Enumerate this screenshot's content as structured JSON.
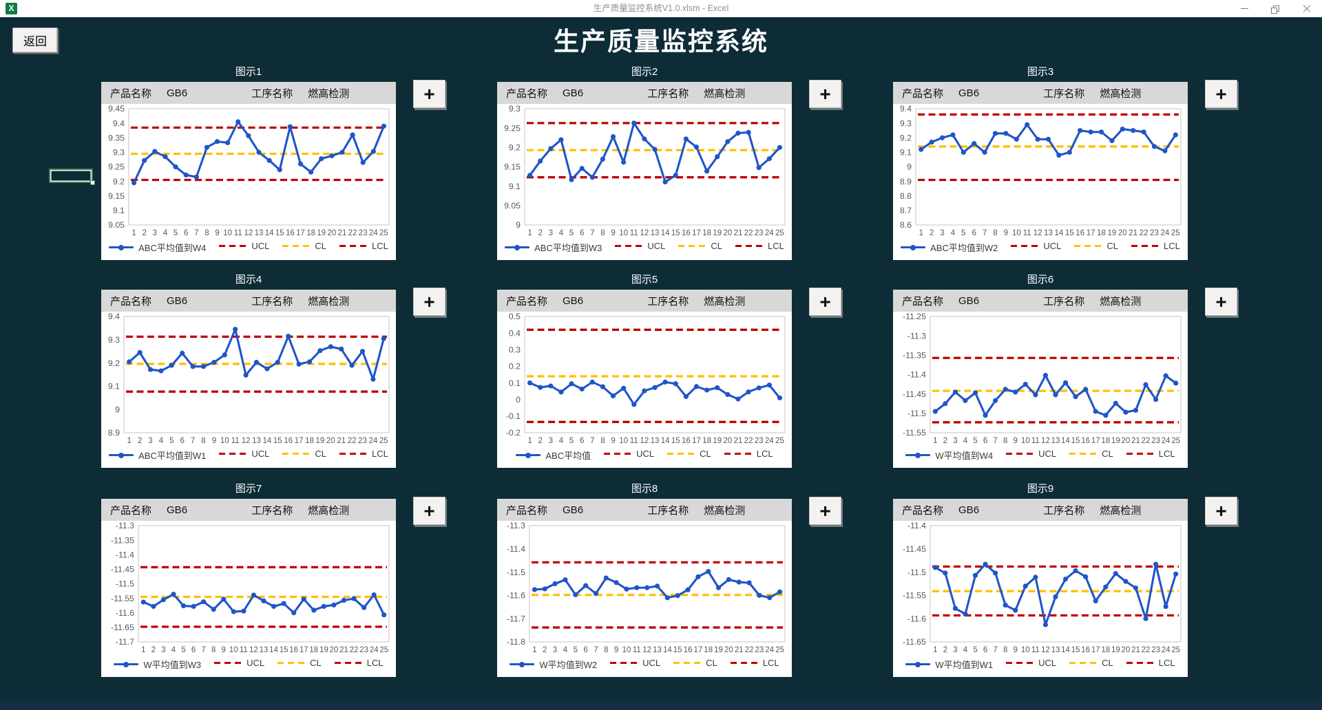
{
  "window": {
    "title": "生产质量监控系统V1.0.xlsm - Excel",
    "excel_icon_letter": "X",
    "minimize": "minimize",
    "restore": "restore",
    "close": "close"
  },
  "page": {
    "title": "生产质量监控系统",
    "back_button": "返回",
    "add_button": "+"
  },
  "panel_labels": {
    "product_label": "产品名称",
    "product_value": "GB6",
    "process_label": "工序名称",
    "process_value": "燃高检测"
  },
  "legend": {
    "ucl": "UCL",
    "cl": "CL",
    "lcl": "LCL"
  },
  "colors": {
    "background": "#0d2c36",
    "series_blue": "#1f55c8",
    "control_red": "#c00000",
    "center_orange": "#ffc000",
    "panel_header_gray": "#d8d8d8"
  },
  "x_labels": [
    "1",
    "2",
    "3",
    "4",
    "5",
    "6",
    "7",
    "8",
    "9",
    "10",
    "11",
    "12",
    "13",
    "14",
    "15",
    "16",
    "17",
    "18",
    "19",
    "20",
    "21",
    "22",
    "23",
    "24",
    "25"
  ],
  "chart_data": [
    {
      "id": "图示1",
      "type": "line",
      "series_name": "ABC平均值到W4",
      "ucl": 9.385,
      "cl": 9.295,
      "lcl": 9.205,
      "ylim": [
        9.05,
        9.45
      ],
      "y_ticks": [
        "9.05",
        "9.1",
        "9.15",
        "9.2",
        "9.25",
        "9.3",
        "9.35",
        "9.4",
        "9.45"
      ],
      "values": [
        9.195,
        9.272,
        9.303,
        9.285,
        9.25,
        9.222,
        9.215,
        9.317,
        9.337,
        9.333,
        9.405,
        9.357,
        9.3,
        9.272,
        9.24,
        9.388,
        9.26,
        9.232,
        9.278,
        9.288,
        9.3,
        9.36,
        9.265,
        9.303,
        9.39
      ]
    },
    {
      "id": "图示2",
      "type": "line",
      "series_name": "ABC平均值到W3",
      "ucl": 9.263,
      "cl": 9.193,
      "lcl": 9.123,
      "ylim": [
        9.0,
        9.3
      ],
      "y_ticks": [
        "9",
        "9.05",
        "9.1",
        "9.15",
        "9.2",
        "9.25",
        "9.3"
      ],
      "values": [
        9.128,
        9.165,
        9.197,
        9.22,
        9.117,
        9.146,
        9.123,
        9.17,
        9.228,
        9.162,
        9.263,
        9.222,
        9.195,
        9.111,
        9.128,
        9.222,
        9.201,
        9.139,
        9.176,
        9.215,
        9.237,
        9.239,
        9.148,
        9.171,
        9.2
      ]
    },
    {
      "id": "图示3",
      "type": "line",
      "series_name": "ABC平均值到W2",
      "ucl": 9.36,
      "cl": 9.14,
      "lcl": 8.91,
      "ylim": [
        8.6,
        9.4
      ],
      "y_ticks": [
        "8.6",
        "8.7",
        "8.8",
        "8.9",
        "9",
        "9.1",
        "9.2",
        "9.3",
        "9.4"
      ],
      "values": [
        9.12,
        9.17,
        9.2,
        9.22,
        9.1,
        9.16,
        9.1,
        9.23,
        9.23,
        9.19,
        9.29,
        9.19,
        9.19,
        9.08,
        9.1,
        9.25,
        9.24,
        9.24,
        9.18,
        9.26,
        9.25,
        9.24,
        9.14,
        9.11,
        9.22
      ]
    },
    {
      "id": "图示4",
      "type": "line",
      "series_name": "ABC平均值到W1",
      "ucl": 9.313,
      "cl": 9.196,
      "lcl": 9.077,
      "ylim": [
        8.9,
        9.4
      ],
      "y_ticks": [
        "8.9",
        "9",
        "9.1",
        "9.2",
        "9.3",
        "9.4"
      ],
      "values": [
        9.205,
        9.245,
        9.172,
        9.166,
        9.19,
        9.242,
        9.185,
        9.185,
        9.203,
        9.235,
        9.345,
        9.148,
        9.203,
        9.175,
        9.203,
        9.315,
        9.195,
        9.205,
        9.253,
        9.27,
        9.26,
        9.19,
        9.25,
        9.13,
        9.305
      ]
    },
    {
      "id": "图示5",
      "type": "line",
      "series_name": "ABC平均值",
      "ucl": 0.42,
      "cl": 0.14,
      "lcl": -0.135,
      "ylim": [
        -0.2,
        0.5
      ],
      "y_ticks": [
        "-0.2",
        "-0.1",
        "0",
        "0.1",
        "0.2",
        "0.3",
        "0.4",
        "0.5"
      ],
      "values": [
        0.1,
        0.073,
        0.082,
        0.045,
        0.095,
        0.063,
        0.105,
        0.077,
        0.022,
        0.068,
        -0.03,
        0.052,
        0.072,
        0.105,
        0.095,
        0.018,
        0.078,
        0.057,
        0.071,
        0.03,
        0.003,
        0.046,
        0.07,
        0.087,
        0.01
      ]
    },
    {
      "id": "图示6",
      "type": "line",
      "series_name": "W平均值到W4",
      "ucl": -11.357,
      "cl": -11.442,
      "lcl": -11.523,
      "ylim": [
        -11.55,
        -11.25
      ],
      "y_ticks": [
        "-11.55",
        "-11.5",
        "-11.45",
        "-11.4",
        "-11.35",
        "-11.3",
        "-11.25"
      ],
      "values": [
        -11.495,
        -11.475,
        -11.445,
        -11.467,
        -11.447,
        -11.505,
        -11.467,
        -11.438,
        -11.445,
        -11.425,
        -11.452,
        -11.402,
        -11.452,
        -11.421,
        -11.457,
        -11.438,
        -11.495,
        -11.505,
        -11.474,
        -11.497,
        -11.492,
        -11.426,
        -11.464,
        -11.403,
        -11.422
      ]
    },
    {
      "id": "图示7",
      "type": "line",
      "series_name": "W平均值到W3",
      "ucl": -11.443,
      "cl": -11.545,
      "lcl": -11.648,
      "ylim": [
        -11.7,
        -11.3
      ],
      "y_ticks": [
        "-11.7",
        "-11.65",
        "-11.6",
        "-11.55",
        "-11.5",
        "-11.45",
        "-11.4",
        "-11.35",
        "-11.3"
      ],
      "values": [
        -11.563,
        -11.578,
        -11.555,
        -11.536,
        -11.576,
        -11.578,
        -11.562,
        -11.588,
        -11.553,
        -11.596,
        -11.594,
        -11.539,
        -11.559,
        -11.578,
        -11.568,
        -11.6,
        -11.553,
        -11.591,
        -11.578,
        -11.573,
        -11.557,
        -11.551,
        -11.582,
        -11.538,
        -11.607
      ]
    },
    {
      "id": "图示8",
      "type": "line",
      "series_name": "W平均值到W2",
      "ucl": -11.458,
      "cl": -11.598,
      "lcl": -11.738,
      "ylim": [
        -11.8,
        -11.3
      ],
      "y_ticks": [
        "-11.8",
        "-11.7",
        "-11.6",
        "-11.5",
        "-11.4",
        "-11.3"
      ],
      "values": [
        -11.575,
        -11.572,
        -11.55,
        -11.533,
        -11.597,
        -11.558,
        -11.592,
        -11.525,
        -11.545,
        -11.573,
        -11.567,
        -11.567,
        -11.56,
        -11.61,
        -11.601,
        -11.576,
        -11.52,
        -11.497,
        -11.567,
        -11.532,
        -11.543,
        -11.546,
        -11.6,
        -11.61,
        -11.585
      ]
    },
    {
      "id": "图示9",
      "type": "line",
      "series_name": "W平均值到W1",
      "ucl": -11.488,
      "cl": -11.541,
      "lcl": -11.593,
      "ylim": [
        -11.65,
        -11.4
      ],
      "y_ticks": [
        "-11.65",
        "-11.6",
        "-11.55",
        "-11.5",
        "-11.45",
        "-11.4"
      ],
      "values": [
        -11.49,
        -11.502,
        -11.578,
        -11.59,
        -11.507,
        -11.483,
        -11.502,
        -11.571,
        -11.582,
        -11.53,
        -11.511,
        -11.613,
        -11.553,
        -11.515,
        -11.497,
        -11.51,
        -11.562,
        -11.532,
        -11.503,
        -11.52,
        -11.534,
        -11.6,
        -11.483,
        -11.574,
        -11.504
      ]
    }
  ]
}
